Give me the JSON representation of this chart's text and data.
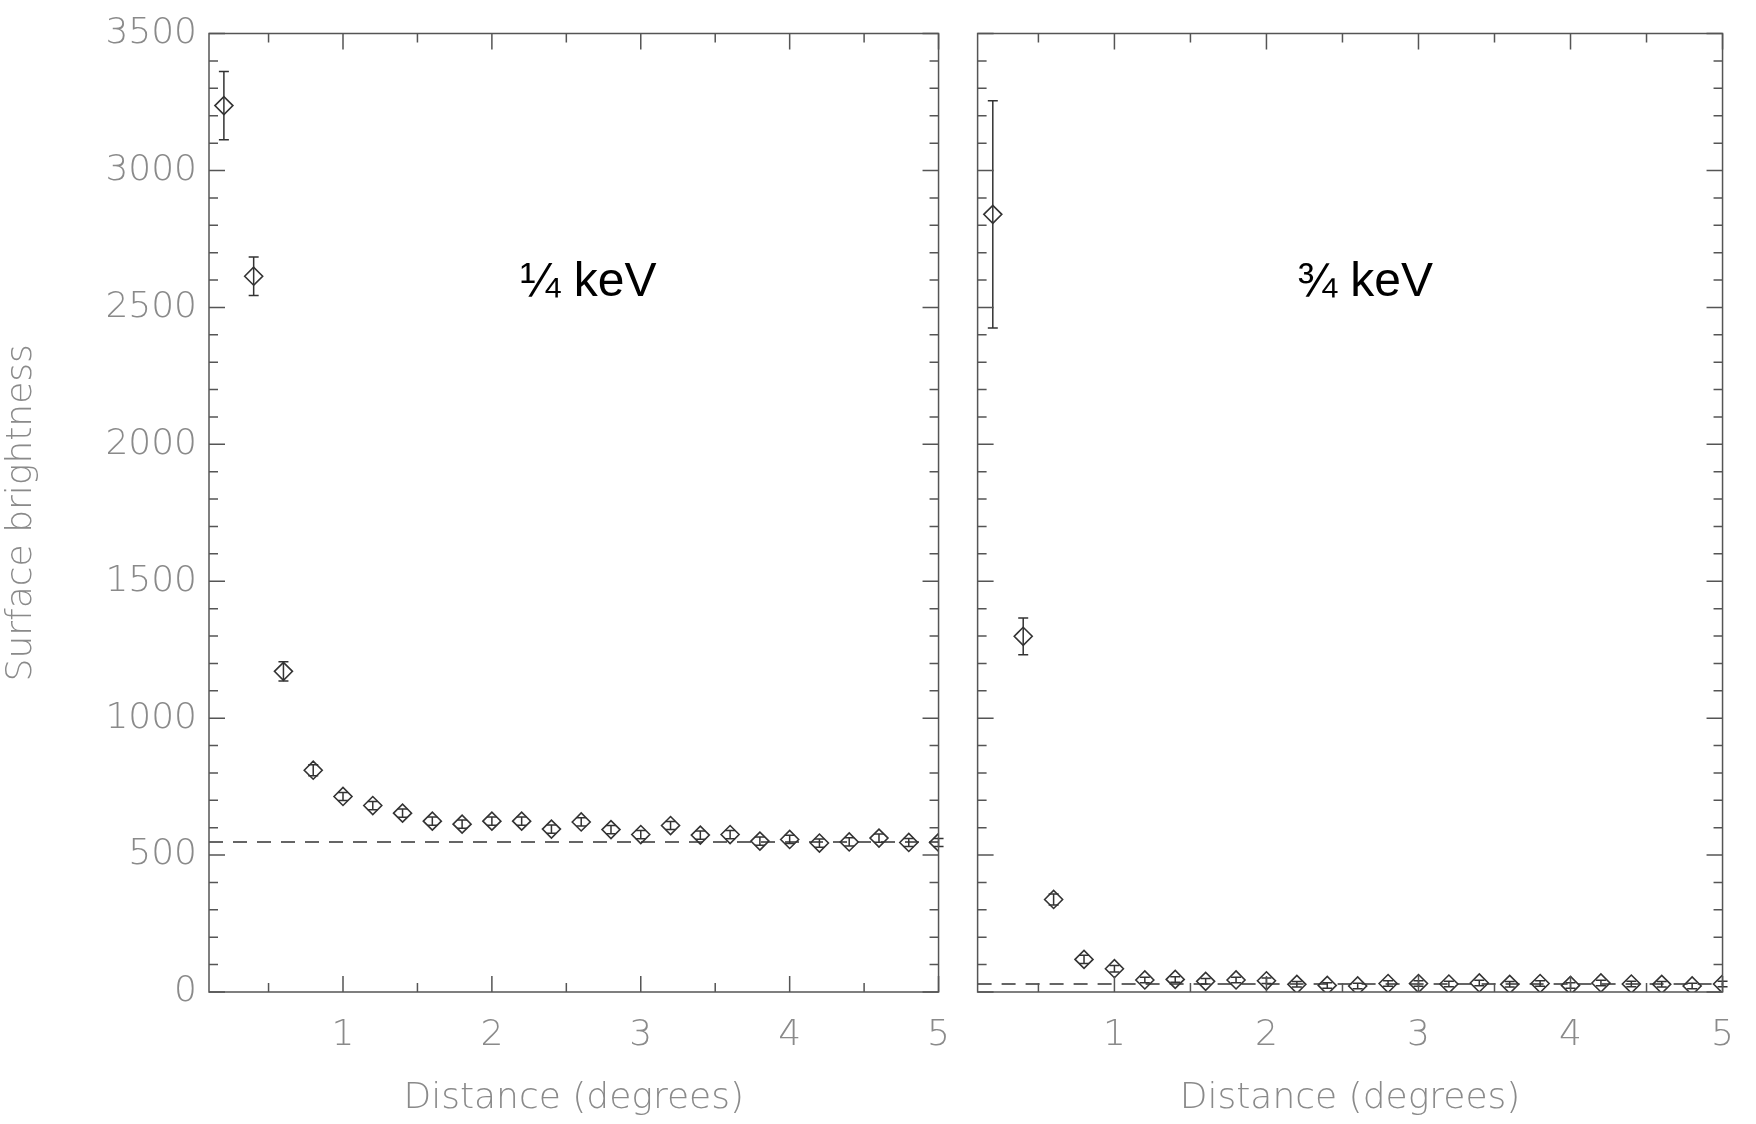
{
  "chart_data": [
    {
      "type": "scatter",
      "xlabel": "Distance (degrees)",
      "ylabel": "Surface brightness",
      "annotations": [
        "¼ keV"
      ],
      "x": [
        0.2,
        0.4,
        0.6,
        0.8,
        1.0,
        1.2,
        1.4,
        1.6,
        1.8,
        2.0,
        2.2,
        2.4,
        2.6,
        2.8,
        3.0,
        3.2,
        3.4,
        3.6,
        3.8,
        4.0,
        4.2,
        4.4,
        4.6,
        4.8,
        5.0
      ],
      "series": [
        {
          "color": "#333333",
          "values": [
            3237,
            2614,
            1171,
            810,
            714,
            681,
            653,
            624,
            613,
            624,
            624,
            595,
            621,
            593,
            575,
            608,
            573,
            575,
            551,
            557,
            544,
            548,
            562,
            546,
            546
          ],
          "errors": [
            125,
            70,
            35,
            20,
            15,
            15,
            15,
            15,
            15,
            15,
            15,
            15,
            15,
            15,
            15,
            15,
            15,
            15,
            15,
            15,
            15,
            15,
            15,
            15,
            15
          ]
        }
      ],
      "marker": "diamond",
      "grid": false,
      "legend": false,
      "ref_lines": [
        {
          "axis": "y",
          "value": 548,
          "line_style": "dashed",
          "color": "#333333"
        }
      ],
      "xlim": [
        0.1,
        5
      ],
      "ylim": [
        0,
        3500
      ],
      "xticks": [
        {
          "value": 0.5,
          "label": null
        },
        1,
        {
          "value": 1.5,
          "label": null
        },
        2,
        {
          "value": 2.5,
          "label": null
        },
        3,
        {
          "value": 3.5,
          "label": null
        },
        4,
        {
          "value": 4.5,
          "label": null
        },
        5
      ],
      "yticks": [
        0,
        {
          "value": 100,
          "label": null
        },
        {
          "value": 200,
          "label": null
        },
        {
          "value": 300,
          "label": null
        },
        {
          "value": 400,
          "label": null
        },
        500,
        {
          "value": 600,
          "label": null
        },
        {
          "value": 700,
          "label": null
        },
        {
          "value": 800,
          "label": null
        },
        {
          "value": 900,
          "label": null
        },
        1000,
        {
          "value": 1100,
          "label": null
        },
        {
          "value": 1200,
          "label": null
        },
        {
          "value": 1300,
          "label": null
        },
        {
          "value": 1400,
          "label": null
        },
        1500,
        {
          "value": 1600,
          "label": null
        },
        {
          "value": 1700,
          "label": null
        },
        {
          "value": 1800,
          "label": null
        },
        {
          "value": 1900,
          "label": null
        },
        2000,
        {
          "value": 2100,
          "label": null
        },
        {
          "value": 2200,
          "label": null
        },
        {
          "value": 2300,
          "label": null
        },
        {
          "value": 2400,
          "label": null
        },
        2500,
        {
          "value": 2600,
          "label": null
        },
        {
          "value": 2700,
          "label": null
        },
        {
          "value": 2800,
          "label": null
        },
        {
          "value": 2900,
          "label": null
        },
        3000,
        {
          "value": 3100,
          "label": null
        },
        {
          "value": 3200,
          "label": null
        },
        {
          "value": 3300,
          "label": null
        },
        {
          "value": 3400,
          "label": null
        },
        3500
      ]
    },
    {
      "type": "scatter",
      "xlabel": "Distance (degrees)",
      "annotations": [
        "¾ keV"
      ],
      "x": [
        0.2,
        0.4,
        0.6,
        0.8,
        1.0,
        1.2,
        1.4,
        1.6,
        1.8,
        2.0,
        2.2,
        2.4,
        2.6,
        2.8,
        3.0,
        3.2,
        3.4,
        3.6,
        3.8,
        4.0,
        4.2,
        4.4,
        4.6,
        4.8,
        5.0
      ],
      "series": [
        {
          "color": "#333333",
          "values": [
            2840,
            1299,
            338,
            119,
            85,
            44,
            46,
            39,
            44,
            41,
            28,
            24,
            22,
            31,
            31,
            29,
            33,
            28,
            31,
            24,
            33,
            29,
            28,
            22,
            29
          ],
          "errors": [
            415,
            67,
            20,
            15,
            12,
            10,
            10,
            10,
            10,
            10,
            10,
            10,
            10,
            10,
            10,
            10,
            10,
            10,
            10,
            10,
            10,
            10,
            10,
            10,
            10
          ]
        }
      ],
      "marker": "diamond",
      "grid": false,
      "legend": false,
      "tick_labels": "x",
      "ref_lines": [
        {
          "axis": "y",
          "value": 29,
          "line_style": "dashed",
          "color": "#333333"
        }
      ],
      "xlim": [
        0.1,
        5
      ],
      "ylim": [
        0,
        3500
      ],
      "xticks": [
        {
          "value": 0.5,
          "label": null
        },
        1,
        {
          "value": 1.5,
          "label": null
        },
        2,
        {
          "value": 2.5,
          "label": null
        },
        3,
        {
          "value": 3.5,
          "label": null
        },
        4,
        {
          "value": 4.5,
          "label": null
        },
        5
      ],
      "yticks": [
        0,
        {
          "value": 100,
          "label": null
        },
        {
          "value": 200,
          "label": null
        },
        {
          "value": 300,
          "label": null
        },
        {
          "value": 400,
          "label": null
        },
        500,
        {
          "value": 600,
          "label": null
        },
        {
          "value": 700,
          "label": null
        },
        {
          "value": 800,
          "label": null
        },
        {
          "value": 900,
          "label": null
        },
        1000,
        {
          "value": 1100,
          "label": null
        },
        {
          "value": 1200,
          "label": null
        },
        {
          "value": 1300,
          "label": null
        },
        {
          "value": 1400,
          "label": null
        },
        1500,
        {
          "value": 1600,
          "label": null
        },
        {
          "value": 1700,
          "label": null
        },
        {
          "value": 1800,
          "label": null
        },
        {
          "value": 1900,
          "label": null
        },
        2000,
        {
          "value": 2100,
          "label": null
        },
        {
          "value": 2200,
          "label": null
        },
        {
          "value": 2300,
          "label": null
        },
        {
          "value": 2400,
          "label": null
        },
        2500,
        {
          "value": 2600,
          "label": null
        },
        {
          "value": 2700,
          "label": null
        },
        {
          "value": 2800,
          "label": null
        },
        {
          "value": 2900,
          "label": null
        },
        3000,
        {
          "value": 3100,
          "label": null
        },
        {
          "value": 3200,
          "label": null
        },
        {
          "value": 3300,
          "label": null
        },
        {
          "value": 3400,
          "label": null
        },
        3500
      ]
    }
  ]
}
